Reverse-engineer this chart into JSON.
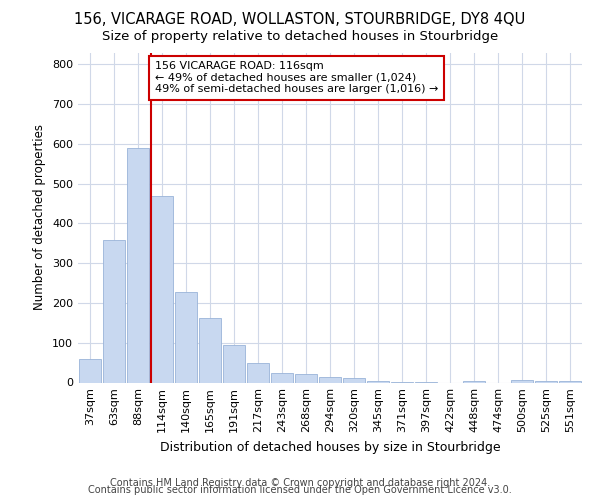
{
  "title1": "156, VICARAGE ROAD, WOLLASTON, STOURBRIDGE, DY8 4QU",
  "title2": "Size of property relative to detached houses in Stourbridge",
  "xlabel": "Distribution of detached houses by size in Stourbridge",
  "ylabel": "Number of detached properties",
  "categories": [
    "37sqm",
    "63sqm",
    "88sqm",
    "114sqm",
    "140sqm",
    "165sqm",
    "191sqm",
    "217sqm",
    "243sqm",
    "268sqm",
    "294sqm",
    "320sqm",
    "345sqm",
    "371sqm",
    "397sqm",
    "422sqm",
    "448sqm",
    "474sqm",
    "500sqm",
    "525sqm",
    "551sqm"
  ],
  "values": [
    60,
    358,
    590,
    470,
    228,
    162,
    95,
    48,
    25,
    22,
    15,
    12,
    5,
    2,
    1,
    0,
    4,
    0,
    7,
    3,
    3
  ],
  "bar_color": "#c8d8f0",
  "bar_edge_color": "#9ab4d8",
  "vline_color": "#cc0000",
  "annotation_line1": "156 VICARAGE ROAD: 116sqm",
  "annotation_line2": "← 49% of detached houses are smaller (1,024)",
  "annotation_line3": "49% of semi-detached houses are larger (1,016) →",
  "annotation_box_facecolor": "white",
  "annotation_box_edgecolor": "#cc0000",
  "ylim": [
    0,
    830
  ],
  "yticks": [
    0,
    100,
    200,
    300,
    400,
    500,
    600,
    700,
    800
  ],
  "bg_color": "#ffffff",
  "plot_bg_color": "#ffffff",
  "grid_color": "#d0d8e8",
  "footer1": "Contains HM Land Registry data © Crown copyright and database right 2024.",
  "footer2": "Contains public sector information licensed under the Open Government Licence v3.0.",
  "title1_fontsize": 10.5,
  "title2_fontsize": 9.5,
  "xlabel_fontsize": 9,
  "ylabel_fontsize": 8.5,
  "tick_fontsize": 8,
  "annotation_fontsize": 8,
  "footer_fontsize": 7
}
